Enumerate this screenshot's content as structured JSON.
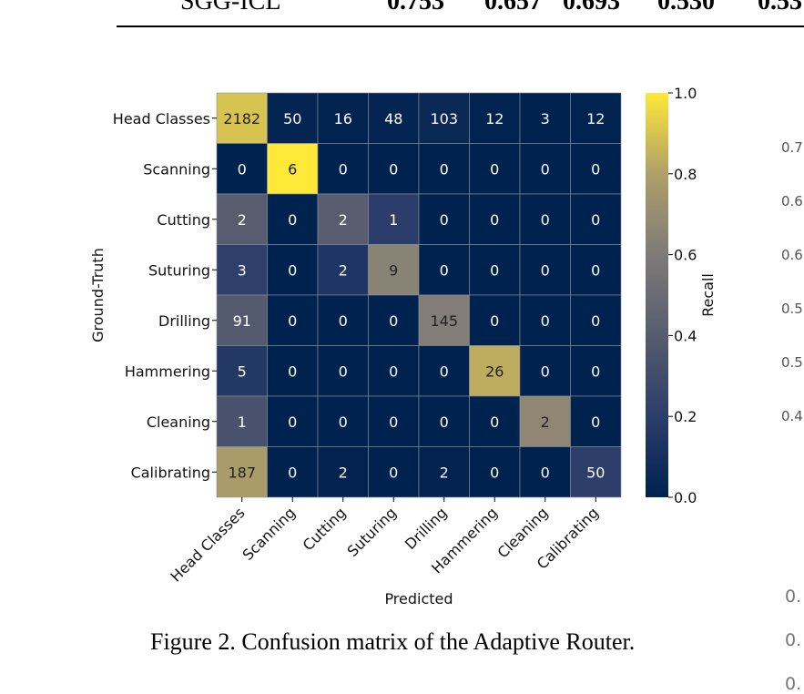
{
  "top_table_row": {
    "label": "SGG-ICL",
    "values": [
      "0.753",
      "0.657",
      "0.693",
      "0.530",
      "0.53"
    ]
  },
  "caption": {
    "prefix": "Figure 2.",
    "text": "Confusion matrix of the Adaptive Router."
  },
  "right_cropped_ticks": [
    "0.7",
    "0.6",
    "0.6",
    "0.5",
    "0.5",
    "0.4"
  ],
  "right_cropped_ticks_lower": [
    "0.",
    "0.",
    "0."
  ],
  "chart_data": {
    "type": "heatmap",
    "title": "",
    "xlabel": "Predicted",
    "ylabel": "Ground-Truth",
    "colorbar_label": "Recall",
    "colormap": "cividis",
    "colorbar_range": [
      0.0,
      1.0
    ],
    "colorbar_ticks": [
      "0.0",
      "0.2",
      "0.4",
      "0.6",
      "0.8",
      "1.0"
    ],
    "x_categories": [
      "Head Classes",
      "Scanning",
      "Cutting",
      "Suturing",
      "Drilling",
      "Hammering",
      "Cleaning",
      "Calibrating"
    ],
    "y_categories": [
      "Head Classes",
      "Scanning",
      "Cutting",
      "Suturing",
      "Drilling",
      "Hammering",
      "Cleaning",
      "Calibrating"
    ],
    "matrix": [
      [
        2182,
        50,
        16,
        48,
        103,
        12,
        3,
        12
      ],
      [
        0,
        6,
        0,
        0,
        0,
        0,
        0,
        0
      ],
      [
        2,
        0,
        2,
        1,
        0,
        0,
        0,
        0
      ],
      [
        3,
        0,
        2,
        9,
        0,
        0,
        0,
        0
      ],
      [
        91,
        0,
        0,
        0,
        145,
        0,
        0,
        0
      ],
      [
        5,
        0,
        0,
        0,
        0,
        26,
        0,
        0
      ],
      [
        1,
        0,
        0,
        0,
        0,
        0,
        2,
        0
      ],
      [
        187,
        0,
        2,
        0,
        2,
        0,
        0,
        50
      ]
    ]
  }
}
